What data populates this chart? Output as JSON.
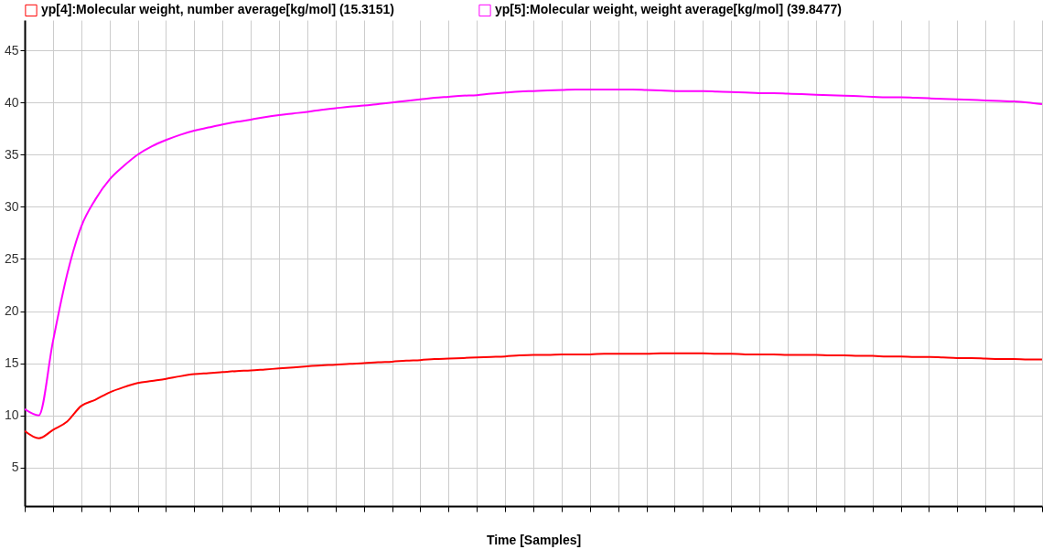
{
  "chart_data": {
    "type": "line",
    "xlabel": "Time [Samples]",
    "categories": [
      null,
      null,
      null,
      null,
      null,
      null,
      null,
      null,
      null,
      null,
      null,
      null,
      null,
      null,
      null,
      null,
      null,
      null,
      null,
      null,
      null,
      null,
      null,
      null,
      null,
      null,
      null,
      null,
      null,
      null,
      null,
      null,
      null,
      null,
      null,
      null,
      null,
      null,
      null,
      null,
      null,
      null,
      null,
      null,
      null,
      null,
      null,
      null,
      null,
      null,
      null,
      null,
      null,
      null,
      null,
      null,
      null,
      null,
      null,
      null,
      null,
      null,
      null,
      null,
      null,
      null,
      null,
      null,
      null,
      null,
      null,
      null,
      null
    ],
    "series": [
      {
        "name": "yp[4]:Molecular weight, number average[kg/mol] (15.3151)",
        "color": "#ff0000",
        "values": [
          8.5,
          7.8,
          8.6,
          9.4,
          10.9,
          11.5,
          12.2,
          12.7,
          13.1,
          13.3,
          13.5,
          13.75,
          13.95,
          14.05,
          14.15,
          14.25,
          14.3,
          14.4,
          14.5,
          14.6,
          14.7,
          14.8,
          14.85,
          14.95,
          15.0,
          15.1,
          15.15,
          15.25,
          15.3,
          15.4,
          15.45,
          15.5,
          15.55,
          15.6,
          15.65,
          15.75,
          15.8,
          15.8,
          15.85,
          15.85,
          15.85,
          15.9,
          15.9,
          15.9,
          15.9,
          15.95,
          15.95,
          15.95,
          15.95,
          15.9,
          15.9,
          15.85,
          15.85,
          15.85,
          15.8,
          15.8,
          15.8,
          15.75,
          15.75,
          15.7,
          15.7,
          15.65,
          15.65,
          15.6,
          15.6,
          15.55,
          15.5,
          15.5,
          15.45,
          15.4,
          15.4,
          15.35,
          15.35
        ]
      },
      {
        "name": "yp[5]:Molecular weight, weight average[kg/mol] (39.8477)",
        "color": "#ff00ff",
        "values": [
          10.6,
          10.0,
          17.1,
          23.5,
          28.1,
          30.7,
          32.6,
          33.9,
          35.0,
          35.8,
          36.4,
          36.9,
          37.3,
          37.6,
          37.9,
          38.15,
          38.35,
          38.6,
          38.8,
          38.95,
          39.1,
          39.3,
          39.45,
          39.6,
          39.7,
          39.85,
          40.0,
          40.15,
          40.3,
          40.45,
          40.55,
          40.65,
          40.7,
          40.85,
          40.95,
          41.05,
          41.1,
          41.15,
          41.2,
          41.25,
          41.25,
          41.25,
          41.25,
          41.25,
          41.2,
          41.15,
          41.1,
          41.1,
          41.1,
          41.05,
          41.0,
          40.95,
          40.9,
          40.9,
          40.85,
          40.8,
          40.75,
          40.7,
          40.65,
          40.6,
          40.55,
          40.5,
          40.5,
          40.45,
          40.4,
          40.35,
          40.3,
          40.25,
          40.2,
          40.15,
          40.1,
          40.0,
          39.85
        ]
      }
    ],
    "ylim": [
      1.3,
      47.9
    ],
    "yticks": [
      5,
      10,
      15,
      20,
      25,
      30,
      35,
      40,
      45
    ],
    "grid": true,
    "legend": "top"
  }
}
